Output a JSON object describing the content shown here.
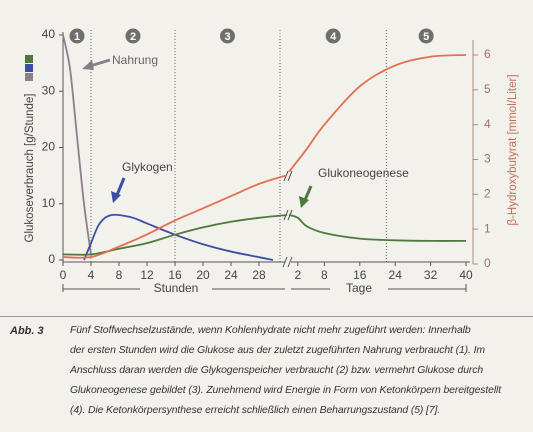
{
  "chart_data": [
    {
      "type": "line",
      "x_label": "Stunden",
      "xlim": [
        0,
        32
      ],
      "xticks": [
        0,
        4,
        8,
        12,
        16,
        20,
        24,
        28
      ],
      "ylabel": "Glukoseverbrauch [g/Stunde]",
      "ylim": [
        0,
        40
      ],
      "yticks": [
        0,
        10,
        20,
        30,
        40
      ],
      "y2label": "β-Hydroxybutyrat [mmol/Liter]",
      "y2lim": [
        0,
        6
      ],
      "y2ticks": [
        0,
        1,
        2,
        3,
        4,
        5,
        6
      ],
      "phase_bounds": [
        4,
        16,
        31
      ],
      "series": [
        {
          "name": "Nahrung",
          "color": "#8c7f8c",
          "x": [
            0,
            1,
            2,
            3,
            4
          ],
          "values": [
            40,
            34,
            22,
            10,
            1
          ]
        },
        {
          "name": "Glykogen",
          "color": "#3b4fa0",
          "x": [
            3,
            4,
            5,
            6,
            7,
            8,
            10,
            12,
            16,
            20,
            24,
            28,
            30
          ],
          "values": [
            0,
            3,
            6,
            7.5,
            8,
            8,
            7.5,
            6.5,
            4.5,
            2.8,
            1.5,
            0.5,
            0
          ]
        },
        {
          "name": "Glukoneogenese",
          "color": "#4d7a3c",
          "x": [
            0,
            4,
            8,
            12,
            16,
            20,
            24,
            28,
            32
          ],
          "values": [
            1,
            1,
            2,
            3,
            4.5,
            5.8,
            6.8,
            7.5,
            8
          ]
        },
        {
          "color": "#e36f4f",
          "axis": "y2",
          "x": [
            0,
            4,
            8,
            12,
            16,
            20,
            24,
            28,
            32
          ],
          "values": [
            0.2,
            0.2,
            0.5,
            0.85,
            1.25,
            1.6,
            1.95,
            2.3,
            2.55
          ]
        }
      ]
    },
    {
      "type": "line",
      "x_label": "Tage",
      "xlim": [
        0,
        40
      ],
      "xticks": [
        2,
        8,
        16,
        24,
        32,
        40
      ],
      "phase_bounds": [
        22
      ],
      "series": [
        {
          "color": "#4d7a3c",
          "x": [
            0,
            2,
            4,
            8,
            16,
            24,
            32,
            40
          ],
          "values": [
            8,
            7.5,
            6,
            4.8,
            3.8,
            3.5,
            3.4,
            3.4
          ]
        },
        {
          "color": "#e36f4f",
          "axis": "y2",
          "x": [
            0,
            4,
            8,
            16,
            24,
            32,
            40
          ],
          "values": [
            2.65,
            3.3,
            4.0,
            5.1,
            5.7,
            5.95,
            6.0
          ]
        }
      ]
    }
  ],
  "phases": [
    "1",
    "2",
    "3",
    "4",
    "5"
  ],
  "caption": {
    "label": "Abb. 3",
    "lines": [
      "Fünf Stoffwechselzustände, wenn Kohlenhydrate nicht mehr zugeführt werden: Innerhalb",
      "der ersten Stunden wird die Glukose aus der zuletzt zugeführten Nahrung verbraucht (1). Im",
      "Anschluss daran werden die Glykogenspeicher verbraucht (2) bzw. vermehrt Glukose durch",
      "Glukoneogenese gebildet (3). Zunehmend wird Energie in Form von Ketonkörpern bereitgestellt",
      "(4). Die Ketonkörpersynthese erreicht schließlich einen Beharrungszustand (5) [7]."
    ]
  }
}
